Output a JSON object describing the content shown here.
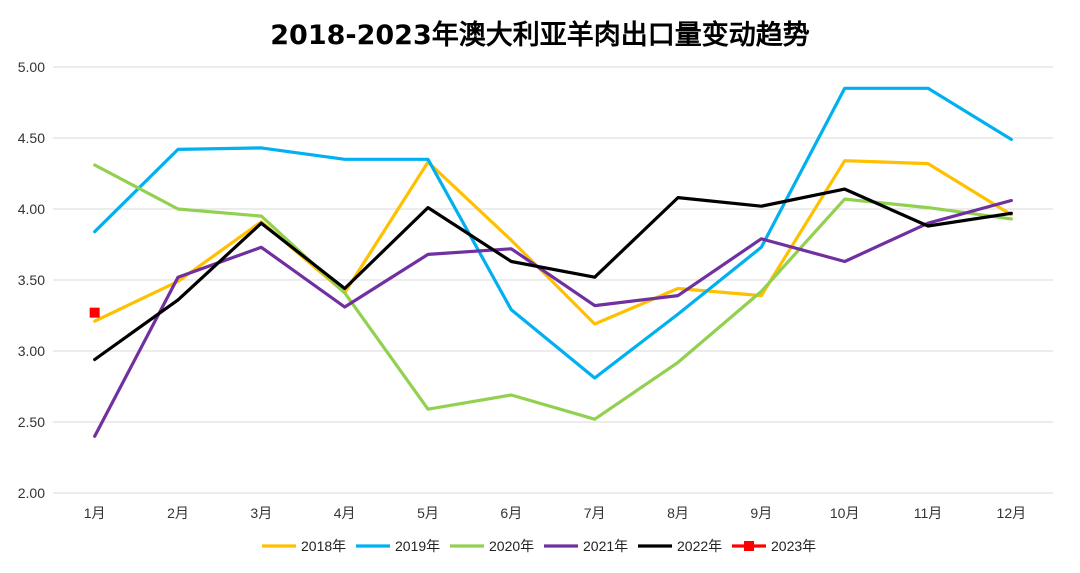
{
  "chart_data": {
    "type": "line",
    "title": "2018-2023年澳大利亚羊肉出口量变动趋势",
    "xlabel": "",
    "ylabel": "",
    "categories": [
      "1月",
      "2月",
      "3月",
      "4月",
      "5月",
      "6月",
      "7月",
      "8月",
      "9月",
      "10月",
      "11月",
      "12月"
    ],
    "ylim": [
      2.0,
      5.0
    ],
    "yticks": [
      "2.00",
      "2.50",
      "3.00",
      "3.50",
      "4.00",
      "4.50",
      "5.00"
    ],
    "ytick_values": [
      2.0,
      2.5,
      3.0,
      3.5,
      4.0,
      4.5,
      5.0
    ],
    "grid": true,
    "legend_position": "bottom",
    "series": [
      {
        "name": "2018年",
        "color": "#ffc000",
        "values": [
          3.21,
          3.49,
          3.91,
          3.41,
          4.33,
          3.78,
          3.19,
          3.44,
          3.39,
          4.34,
          4.32,
          3.96
        ]
      },
      {
        "name": "2019年",
        "color": "#00b0f0",
        "values": [
          3.84,
          4.42,
          4.43,
          4.35,
          4.35,
          3.29,
          2.81,
          3.26,
          3.73,
          4.85,
          4.85,
          4.49
        ]
      },
      {
        "name": "2020年",
        "color": "#92d050",
        "values": [
          4.31,
          4.0,
          3.95,
          3.41,
          2.59,
          2.69,
          2.52,
          2.92,
          3.42,
          4.07,
          4.01,
          3.93
        ]
      },
      {
        "name": "2021年",
        "color": "#7030a0",
        "values": [
          2.4,
          3.52,
          3.73,
          3.31,
          3.68,
          3.72,
          3.32,
          3.39,
          3.79,
          3.63,
          3.9,
          4.06
        ]
      },
      {
        "name": "2022年",
        "color": "#000000",
        "values": [
          2.94,
          3.36,
          3.9,
          3.44,
          4.01,
          3.63,
          3.52,
          4.08,
          4.02,
          4.14,
          3.88,
          3.97
        ]
      },
      {
        "name": "2023年",
        "color": "#ff0000",
        "values": [
          3.27,
          null,
          null,
          null,
          null,
          null,
          null,
          null,
          null,
          null,
          null,
          null
        ],
        "marker": "square"
      }
    ]
  }
}
